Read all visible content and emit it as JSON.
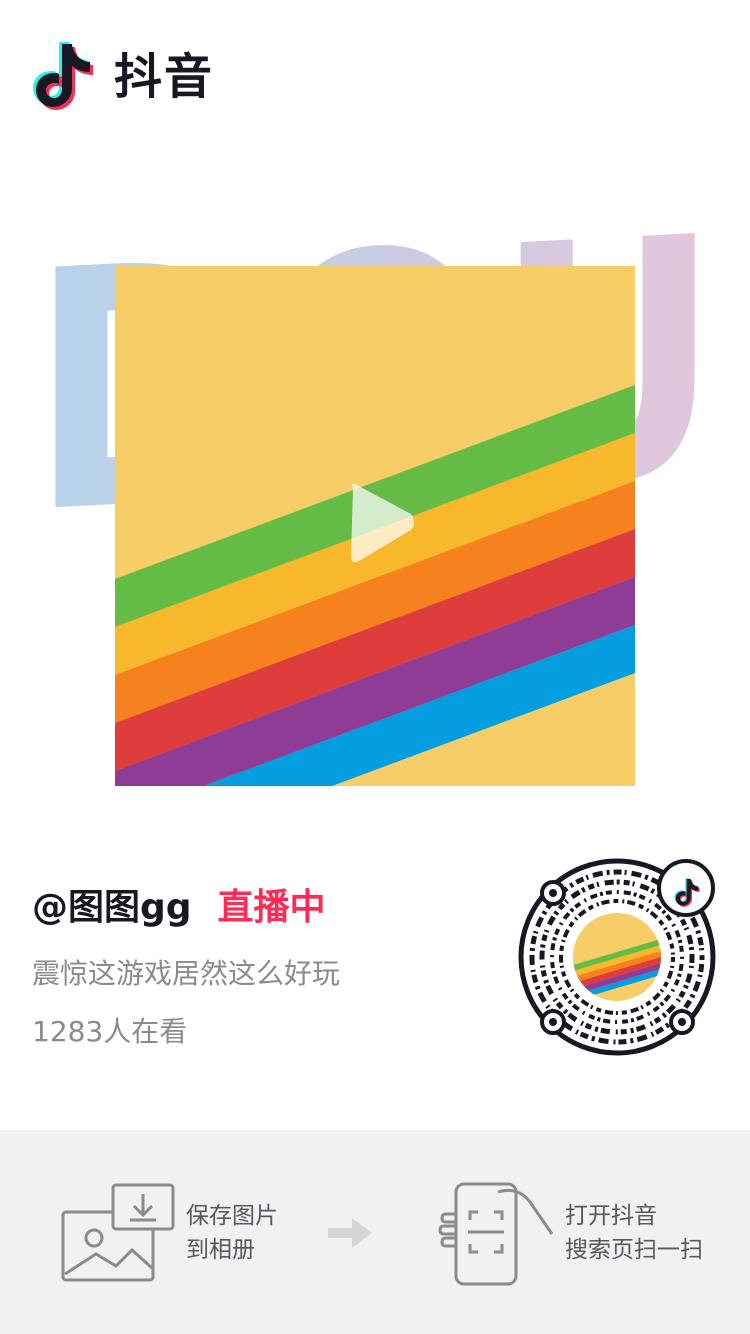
{
  "app": {
    "name": "抖音",
    "logo_icon": "douyin-note-icon"
  },
  "banner": {
    "background_text": "DOU"
  },
  "video": {
    "play_icon": "play-icon"
  },
  "stream": {
    "username": "@图图gg",
    "live_label": "直播中",
    "title": "震惊这游戏居然这么好玩",
    "viewers": "1283人在看"
  },
  "qr": {
    "center_icon": "douyin-note-icon"
  },
  "footer": {
    "step1_line1": "保存图片",
    "step1_line2": "到相册",
    "step2_line1": "打开抖音",
    "step2_line2": "搜索页扫一扫"
  },
  "colors": {
    "brand_red": "#fe2c55",
    "brand_cyan": "#25f4ee",
    "text_dark": "#161823",
    "text_gray": "#8a8b91",
    "cover_yellow": "#f7cd68"
  }
}
